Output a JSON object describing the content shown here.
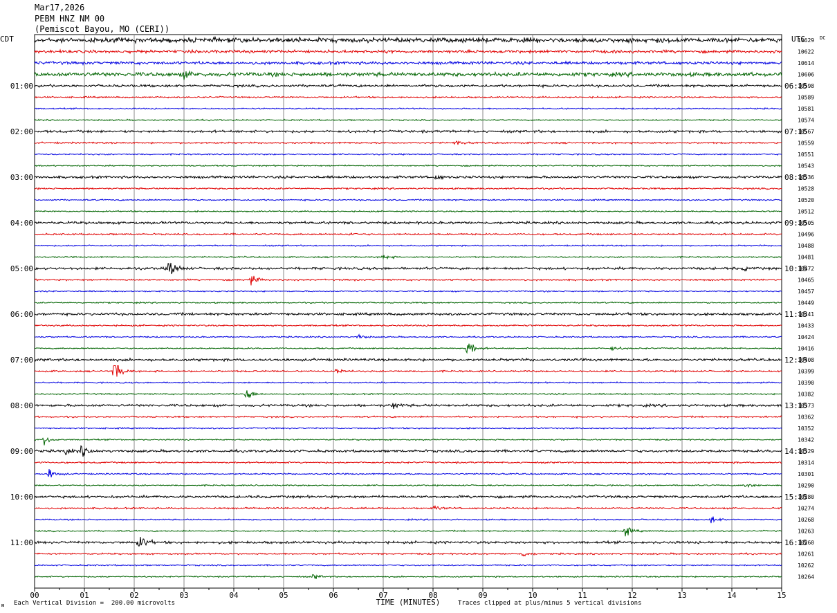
{
  "header": {
    "date": "Mar17,2026",
    "station": "PEBM HNZ NM 00",
    "location": "(Pemiscot Bayou, MO (CERI))"
  },
  "labels": {
    "left_tz": "CDT",
    "right_tz": "UTC",
    "dc": "DC"
  },
  "footer": {
    "scale": "Each Vertical Division =  200.00 microvolts",
    "clip": "Traces clipped at plus/minus 5 vertical divisions",
    "corner_mark": "ᴍ"
  },
  "chart_data": {
    "type": "helicorder",
    "xlabel": "TIME (MINUTES)",
    "x_ticks": [
      "00",
      "01",
      "02",
      "03",
      "04",
      "05",
      "06",
      "07",
      "08",
      "09",
      "10",
      "11",
      "12",
      "13",
      "14",
      "15"
    ],
    "xlim": [
      0,
      15
    ],
    "trace_colors": [
      "#000000",
      "#e00000",
      "#0000e0",
      "#006400"
    ],
    "cdt_hour_labels": [
      "01:00",
      "02:00",
      "03:00",
      "04:00",
      "05:00",
      "06:00",
      "07:00",
      "08:00",
      "09:00",
      "10:00",
      "11:00"
    ],
    "utc_hour_labels": [
      "06:15",
      "07:15",
      "08:15",
      "09:15",
      "10:15",
      "11:15",
      "12:15",
      "13:15",
      "14:15",
      "15:15",
      "16:15"
    ],
    "dc_offsets": [
      10629,
      10622,
      10614,
      10606,
      10598,
      10589,
      10581,
      10574,
      10567,
      10559,
      10551,
      10543,
      10536,
      10528,
      10520,
      10512,
      10505,
      10496,
      10488,
      10481,
      10472,
      10465,
      10457,
      10449,
      10441,
      10433,
      10424,
      10416,
      10408,
      10399,
      10390,
      10382,
      10373,
      10362,
      10352,
      10342,
      10329,
      10314,
      10301,
      10290,
      10280,
      10274,
      10268,
      10263,
      10260,
      10261,
      10262,
      10264
    ],
    "events": [
      {
        "trace": 3,
        "minute": 3.0,
        "amp": 6
      },
      {
        "trace": 9,
        "minute": 8.45,
        "amp": 3
      },
      {
        "trace": 12,
        "minute": 8.05,
        "amp": 3
      },
      {
        "trace": 17,
        "minute": 6.3,
        "amp": 2
      },
      {
        "trace": 19,
        "minute": 7.0,
        "amp": 4
      },
      {
        "trace": 20,
        "minute": 2.7,
        "amp": 14
      },
      {
        "trace": 20,
        "minute": 14.25,
        "amp": 2
      },
      {
        "trace": 21,
        "minute": 4.35,
        "amp": 6
      },
      {
        "trace": 26,
        "minute": 6.5,
        "amp": 3
      },
      {
        "trace": 27,
        "minute": 8.7,
        "amp": 12
      },
      {
        "trace": 27,
        "minute": 11.6,
        "amp": 3
      },
      {
        "trace": 29,
        "minute": 1.6,
        "amp": 15
      },
      {
        "trace": 29,
        "minute": 6.05,
        "amp": 4
      },
      {
        "trace": 31,
        "minute": 4.25,
        "amp": 8
      },
      {
        "trace": 32,
        "minute": 7.2,
        "amp": 4
      },
      {
        "trace": 35,
        "minute": 0.2,
        "amp": 6
      },
      {
        "trace": 36,
        "minute": 0.6,
        "amp": 4
      },
      {
        "trace": 36,
        "minute": 0.95,
        "amp": 6
      },
      {
        "trace": 38,
        "minute": 0.3,
        "amp": 7
      },
      {
        "trace": 39,
        "minute": 14.25,
        "amp": 4
      },
      {
        "trace": 41,
        "minute": 8.05,
        "amp": 3
      },
      {
        "trace": 42,
        "minute": 13.6,
        "amp": 5
      },
      {
        "trace": 43,
        "minute": 11.85,
        "amp": 7
      },
      {
        "trace": 44,
        "minute": 2.1,
        "amp": 12
      },
      {
        "trace": 45,
        "minute": 9.8,
        "amp": 4
      },
      {
        "trace": 47,
        "minute": 5.6,
        "amp": 3
      }
    ]
  }
}
